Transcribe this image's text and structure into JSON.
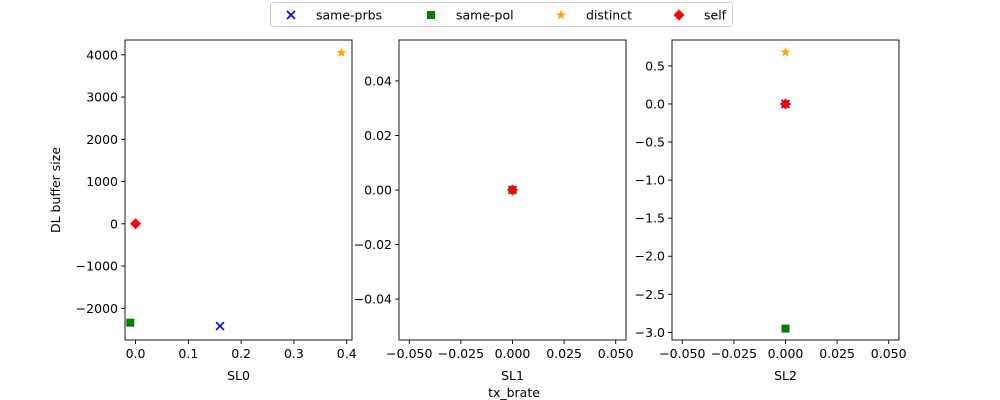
{
  "chart_data": {
    "type": "scatter",
    "legend": {
      "position": "top-center",
      "entries": [
        {
          "name": "same-prbs",
          "marker": "x",
          "color": "#0000ff"
        },
        {
          "name": "same-pol",
          "marker": "square",
          "color": "#008000"
        },
        {
          "name": "distinct",
          "marker": "star",
          "color": "#ffa500"
        },
        {
          "name": "self",
          "marker": "diamond",
          "color": "#ff0000"
        }
      ]
    },
    "figure_xlabel": "tx_brate",
    "panels": [
      {
        "xlabel": "SL0",
        "ylabel": "DL buffer size",
        "xlim": [
          -0.02,
          0.41
        ],
        "ylim": [
          -2750,
          4350
        ],
        "xticks": [
          0.0,
          0.1,
          0.2,
          0.3,
          0.4
        ],
        "xtick_labels": [
          "0.0",
          "0.1",
          "0.2",
          "0.3",
          "0.4"
        ],
        "yticks": [
          -2000,
          -1000,
          0,
          1000,
          2000,
          3000,
          4000
        ],
        "ytick_labels": [
          "−2000",
          "−1000",
          "0",
          "1000",
          "2000",
          "3000",
          "4000"
        ],
        "series": [
          {
            "name": "same-prbs",
            "points": [
              [
                0.16,
                -2420
              ]
            ]
          },
          {
            "name": "same-pol",
            "points": [
              [
                -0.01,
                -2340
              ]
            ]
          },
          {
            "name": "distinct",
            "points": [
              [
                0.39,
                4050
              ]
            ]
          },
          {
            "name": "self",
            "points": [
              [
                0.0,
                0
              ]
            ]
          }
        ]
      },
      {
        "xlabel": "SL1",
        "ylabel": "",
        "xlim": [
          -0.055,
          0.055
        ],
        "ylim": [
          -0.055,
          0.055
        ],
        "xticks": [
          -0.05,
          -0.025,
          0.0,
          0.025,
          0.05
        ],
        "xtick_labels": [
          "−0.050",
          "−0.025",
          "0.000",
          "0.025",
          "0.050"
        ],
        "yticks": [
          -0.04,
          -0.02,
          0.0,
          0.02,
          0.04
        ],
        "ytick_labels": [
          "−0.04",
          "−0.02",
          "0.00",
          "0.02",
          "0.04"
        ],
        "series": [
          {
            "name": "same-prbs",
            "points": [
              [
                0.0,
                0.0
              ]
            ]
          },
          {
            "name": "same-pol",
            "points": [
              [
                0.0,
                0.0
              ]
            ]
          },
          {
            "name": "distinct",
            "points": [
              [
                0.0,
                0.0
              ]
            ]
          },
          {
            "name": "self",
            "points": [
              [
                0.0,
                0.0
              ]
            ]
          }
        ]
      },
      {
        "xlabel": "SL2",
        "ylabel": "",
        "xlim": [
          -0.055,
          0.055
        ],
        "ylim": [
          -3.1,
          0.84
        ],
        "xticks": [
          -0.05,
          -0.025,
          0.0,
          0.025,
          0.05
        ],
        "xtick_labels": [
          "−0.050",
          "−0.025",
          "0.000",
          "0.025",
          "0.050"
        ],
        "yticks": [
          -3.0,
          -2.5,
          -2.0,
          -1.5,
          -1.0,
          -0.5,
          0.0,
          0.5
        ],
        "ytick_labels": [
          "−3.0",
          "−2.5",
          "−2.0",
          "−1.5",
          "−1.0",
          "−0.5",
          "0.0",
          "0.5"
        ],
        "series": [
          {
            "name": "same-prbs",
            "points": [
              [
                0.0,
                0.0
              ]
            ]
          },
          {
            "name": "same-pol",
            "points": [
              [
                0.0,
                -2.95
              ]
            ]
          },
          {
            "name": "distinct",
            "points": [
              [
                0.0,
                0.68
              ]
            ]
          },
          {
            "name": "self",
            "points": [
              [
                0.0,
                0.0
              ]
            ]
          }
        ]
      }
    ]
  }
}
